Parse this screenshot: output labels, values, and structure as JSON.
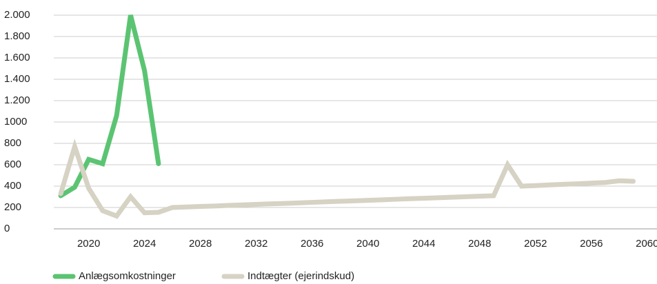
{
  "chart_data": {
    "type": "line",
    "x": [
      2018,
      2019,
      2020,
      2021,
      2022,
      2023,
      2024,
      2025,
      2026,
      2027,
      2028,
      2029,
      2030,
      2031,
      2032,
      2033,
      2034,
      2035,
      2036,
      2037,
      2038,
      2039,
      2040,
      2041,
      2042,
      2043,
      2044,
      2045,
      2046,
      2047,
      2048,
      2049,
      2050,
      2051,
      2052,
      2053,
      2054,
      2055,
      2056,
      2057,
      2058,
      2059
    ],
    "series": [
      {
        "name": "Anlægsomkostninger",
        "color": "#5bc472",
        "values": [
          310,
          390,
          650,
          610,
          1060,
          2000,
          1480,
          610,
          null,
          null,
          null,
          null,
          null,
          null,
          null,
          null,
          null,
          null,
          null,
          null,
          null,
          null,
          null,
          null,
          null,
          null,
          null,
          null,
          null,
          null,
          null,
          null,
          null,
          null,
          null,
          null,
          null,
          null,
          null,
          null,
          null,
          null
        ]
      },
      {
        "name": "Indtægter (ejerindskud)",
        "color": "#d6d2c4",
        "values": [
          330,
          770,
          380,
          170,
          120,
          300,
          150,
          155,
          200,
          205,
          210,
          214,
          219,
          224,
          229,
          234,
          238,
          243,
          248,
          253,
          258,
          262,
          267,
          272,
          277,
          282,
          286,
          291,
          296,
          301,
          306,
          310,
          600,
          400,
          405,
          411,
          417,
          422,
          428,
          434,
          450,
          445
        ]
      }
    ],
    "xlim": [
      2017.5,
      2060.7
    ],
    "xticks": [
      2020,
      2024,
      2028,
      2032,
      2036,
      2040,
      2044,
      2048,
      2052,
      2056,
      2060
    ],
    "ylim": [
      0,
      2000
    ],
    "yticks": [
      0,
      200,
      400,
      600,
      800,
      1000,
      {
        "value": 1200,
        "label": "1.200"
      },
      {
        "value": 1400,
        "label": "1.400"
      },
      {
        "value": 1600,
        "label": "1.600"
      },
      {
        "value": 1800,
        "label": "1.800"
      },
      {
        "value": 2000,
        "label": "2.000"
      }
    ],
    "grid": true
  }
}
